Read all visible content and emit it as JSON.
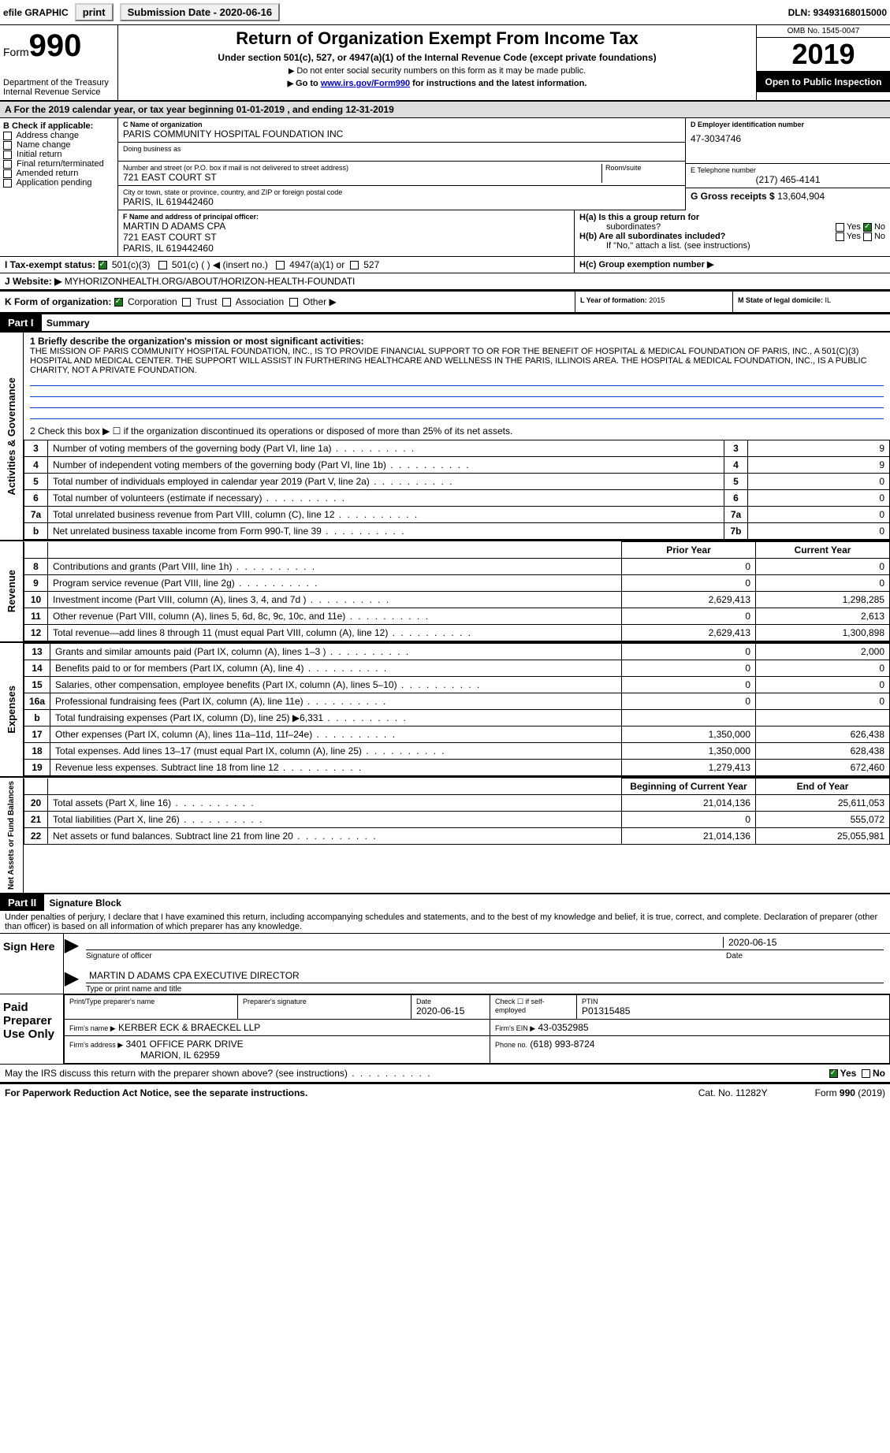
{
  "topbar": {
    "efile_label": "efile GRAPHIC",
    "print_btn": "print",
    "subm_date_label": "Submission Date - 2020-06-16",
    "dln": "DLN: 93493168015000"
  },
  "header": {
    "form_word": "Form",
    "form_no": "990",
    "dept": "Department of the Treasury\nInternal Revenue Service",
    "title": "Return of Organization Exempt From Income Tax",
    "sub1": "Under section 501(c), 527, or 4947(a)(1) of the Internal Revenue Code (except private foundations)",
    "sub2": "Do not enter social security numbers on this form as it may be made public.",
    "sub3_pre": "Go to ",
    "sub3_link": "www.irs.gov/Form990",
    "sub3_post": " for instructions and the latest information.",
    "omb": "OMB No. 1545-0047",
    "year": "2019",
    "inspect": "Open to Public Inspection"
  },
  "periodA": "For the 2019 calendar year, or tax year beginning 01-01-2019    , and ending 12-31-2019",
  "boxB": {
    "title": "B Check if applicable:",
    "opts": [
      "Address change",
      "Name change",
      "Initial return",
      "Final return/terminated",
      "Amended return",
      "Application pending"
    ]
  },
  "boxC": {
    "name_lbl": "C Name of organization",
    "name": "PARIS COMMUNITY HOSPITAL FOUNDATION INC",
    "dba_lbl": "Doing business as",
    "dba": "",
    "addr_lbl": "Number and street (or P.O. box if mail is not delivered to street address)",
    "room_lbl": "Room/suite",
    "addr": "721 EAST COURT ST",
    "city_lbl": "City or town, state or province, country, and ZIP or foreign postal code",
    "city": "PARIS, IL  619442460"
  },
  "boxD": {
    "lbl": "D Employer identification number",
    "val": "47-3034746"
  },
  "boxE": {
    "lbl": "E Telephone number",
    "val": "(217) 465-4141"
  },
  "boxG": {
    "lbl": "G Gross receipts $ ",
    "val": "13,604,904"
  },
  "boxF": {
    "lbl": "F  Name and address of principal officer:",
    "l1": "MARTIN D ADAMS CPA",
    "l2": "721 EAST COURT ST",
    "l3": "PARIS, IL  619442460"
  },
  "boxH": {
    "ha_lbl": "H(a)  Is this a group return for",
    "ha_sub": "subordinates?",
    "hb_lbl": "H(b)  Are all subordinates included?",
    "hb_note": "If \"No,\" attach a list. (see instructions)",
    "hc_lbl": "H(c)  Group exemption number ▶",
    "yes": "Yes",
    "no": "No"
  },
  "boxI": {
    "lbl": "I    Tax-exempt status:",
    "o1": "501(c)(3)",
    "o2": "501(c) (   ) ◀ (insert no.)",
    "o3": "4947(a)(1) or",
    "o4": "527"
  },
  "boxJ": {
    "lbl": "J    Website: ▶",
    "val": "MYHORIZONHEALTH.ORG/ABOUT/HORIZON-HEALTH-FOUNDATI"
  },
  "boxK": {
    "lbl": "K Form of organization:",
    "o1": "Corporation",
    "o2": "Trust",
    "o3": "Association",
    "o4": "Other ▶"
  },
  "boxL": {
    "lbl": "L Year of formation: ",
    "val": "2015"
  },
  "boxM": {
    "lbl": "M State of legal domicile: ",
    "val": "IL"
  },
  "part1": {
    "hdr": "Part I",
    "title": "Summary"
  },
  "summary": {
    "line1_lbl": "1  Briefly describe the organization's mission or most significant activities:",
    "mission": "THE MISSION OF PARIS COMMUNITY HOSPITAL FOUNDATION, INC., IS TO PROVIDE FINANCIAL SUPPORT TO OR FOR THE BENEFIT OF HOSPITAL & MEDICAL FOUNDATION OF PARIS, INC., A 501(C)(3) HOSPITAL AND MEDICAL CENTER. THE SUPPORT WILL ASSIST IN FURTHERING HEALTHCARE AND WELLNESS IN THE PARIS, ILLINOIS AREA. THE HOSPITAL & MEDICAL FOUNDATION, INC., IS A PUBLIC CHARITY, NOT A PRIVATE FOUNDATION.",
    "line2": "2   Check this box ▶ ☐  if the organization discontinued its operations or disposed of more than 25% of its net assets.",
    "rows_ag": [
      {
        "n": "3",
        "d": "Number of voting members of the governing body (Part VI, line 1a)",
        "box": "3",
        "v": "9"
      },
      {
        "n": "4",
        "d": "Number of independent voting members of the governing body (Part VI, line 1b)",
        "box": "4",
        "v": "9"
      },
      {
        "n": "5",
        "d": "Total number of individuals employed in calendar year 2019 (Part V, line 2a)",
        "box": "5",
        "v": "0"
      },
      {
        "n": "6",
        "d": "Total number of volunteers (estimate if necessary)",
        "box": "6",
        "v": "0"
      },
      {
        "n": "7a",
        "d": "Total unrelated business revenue from Part VIII, column (C), line 12",
        "box": "7a",
        "v": "0"
      },
      {
        "n": "b",
        "d": "Net unrelated business taxable income from Form 990-T, line 39",
        "box": "7b",
        "v": "0"
      }
    ],
    "hdr_prior": "Prior Year",
    "hdr_curr": "Current Year",
    "rev": [
      {
        "n": "8",
        "d": "Contributions and grants (Part VIII, line 1h)",
        "p": "0",
        "c": "0"
      },
      {
        "n": "9",
        "d": "Program service revenue (Part VIII, line 2g)",
        "p": "0",
        "c": "0"
      },
      {
        "n": "10",
        "d": "Investment income (Part VIII, column (A), lines 3, 4, and 7d )",
        "p": "2,629,413",
        "c": "1,298,285"
      },
      {
        "n": "11",
        "d": "Other revenue (Part VIII, column (A), lines 5, 6d, 8c, 9c, 10c, and 11e)",
        "p": "0",
        "c": "2,613"
      },
      {
        "n": "12",
        "d": "Total revenue—add lines 8 through 11 (must equal Part VIII, column (A), line 12)",
        "p": "2,629,413",
        "c": "1,300,898"
      }
    ],
    "exp": [
      {
        "n": "13",
        "d": "Grants and similar amounts paid (Part IX, column (A), lines 1–3 )",
        "p": "0",
        "c": "2,000"
      },
      {
        "n": "14",
        "d": "Benefits paid to or for members (Part IX, column (A), line 4)",
        "p": "0",
        "c": "0"
      },
      {
        "n": "15",
        "d": "Salaries, other compensation, employee benefits (Part IX, column (A), lines 5–10)",
        "p": "0",
        "c": "0"
      },
      {
        "n": "16a",
        "d": "Professional fundraising fees (Part IX, column (A), line 11e)",
        "p": "0",
        "c": "0"
      },
      {
        "n": "b",
        "d": "Total fundraising expenses (Part IX, column (D), line 25) ▶6,331",
        "p": "",
        "c": ""
      },
      {
        "n": "17",
        "d": "Other expenses (Part IX, column (A), lines 11a–11d, 11f–24e)",
        "p": "1,350,000",
        "c": "626,438"
      },
      {
        "n": "18",
        "d": "Total expenses. Add lines 13–17 (must equal Part IX, column (A), line 25)",
        "p": "1,350,000",
        "c": "628,438"
      },
      {
        "n": "19",
        "d": "Revenue less expenses. Subtract line 18 from line 12",
        "p": "1,279,413",
        "c": "672,460"
      }
    ],
    "hdr_begin": "Beginning of Current Year",
    "hdr_end": "End of Year",
    "net": [
      {
        "n": "20",
        "d": "Total assets (Part X, line 16)",
        "p": "21,014,136",
        "c": "25,611,053"
      },
      {
        "n": "21",
        "d": "Total liabilities (Part X, line 26)",
        "p": "0",
        "c": "555,072"
      },
      {
        "n": "22",
        "d": "Net assets or fund balances. Subtract line 21 from line 20",
        "p": "21,014,136",
        "c": "25,055,981"
      }
    ],
    "side_ag": "Activities & Governance",
    "side_rev": "Revenue",
    "side_exp": "Expenses",
    "side_net": "Net Assets or Fund Balances"
  },
  "part2": {
    "hdr": "Part II",
    "title": "Signature Block",
    "perjury": "Under penalties of perjury, I declare that I have examined this return, including accompanying schedules and statements, and to the best of my knowledge and belief, it is true, correct, and complete. Declaration of preparer (other than officer) is based on all information of which preparer has any knowledge."
  },
  "sign": {
    "side": "Sign Here",
    "sig_lbl": "Signature of officer",
    "date": "2020-06-15",
    "date_lbl": "Date",
    "name": "MARTIN D ADAMS CPA  EXECUTIVE DIRECTOR",
    "name_lbl": "Type or print name and title"
  },
  "preparer": {
    "side": "Paid Preparer Use Only",
    "c1": "Print/Type preparer's name",
    "c2": "Preparer's signature",
    "c3": "Date",
    "c3v": "2020-06-15",
    "c4": "Check ☐ if self-employed",
    "c5": "PTIN",
    "c5v": "P01315485",
    "firm_lbl": "Firm's name      ▶",
    "firm": "KERBER ECK & BRAECKEL LLP",
    "ein_lbl": "Firm's EIN ▶",
    "ein": "43-0352985",
    "addr_lbl": "Firm's address ▶",
    "addr1": "3401 OFFICE PARK DRIVE",
    "addr2": "MARION, IL  62959",
    "ph_lbl": "Phone no.",
    "ph": "(618) 993-8724"
  },
  "discuss": "May the IRS discuss this return with the preparer shown above? (see instructions)",
  "discuss_yes": "Yes",
  "discuss_no": "No",
  "footer": {
    "left": "For Paperwork Reduction Act Notice, see the separate instructions.",
    "mid": "Cat. No. 11282Y",
    "right": "Form 990 (2019)"
  }
}
